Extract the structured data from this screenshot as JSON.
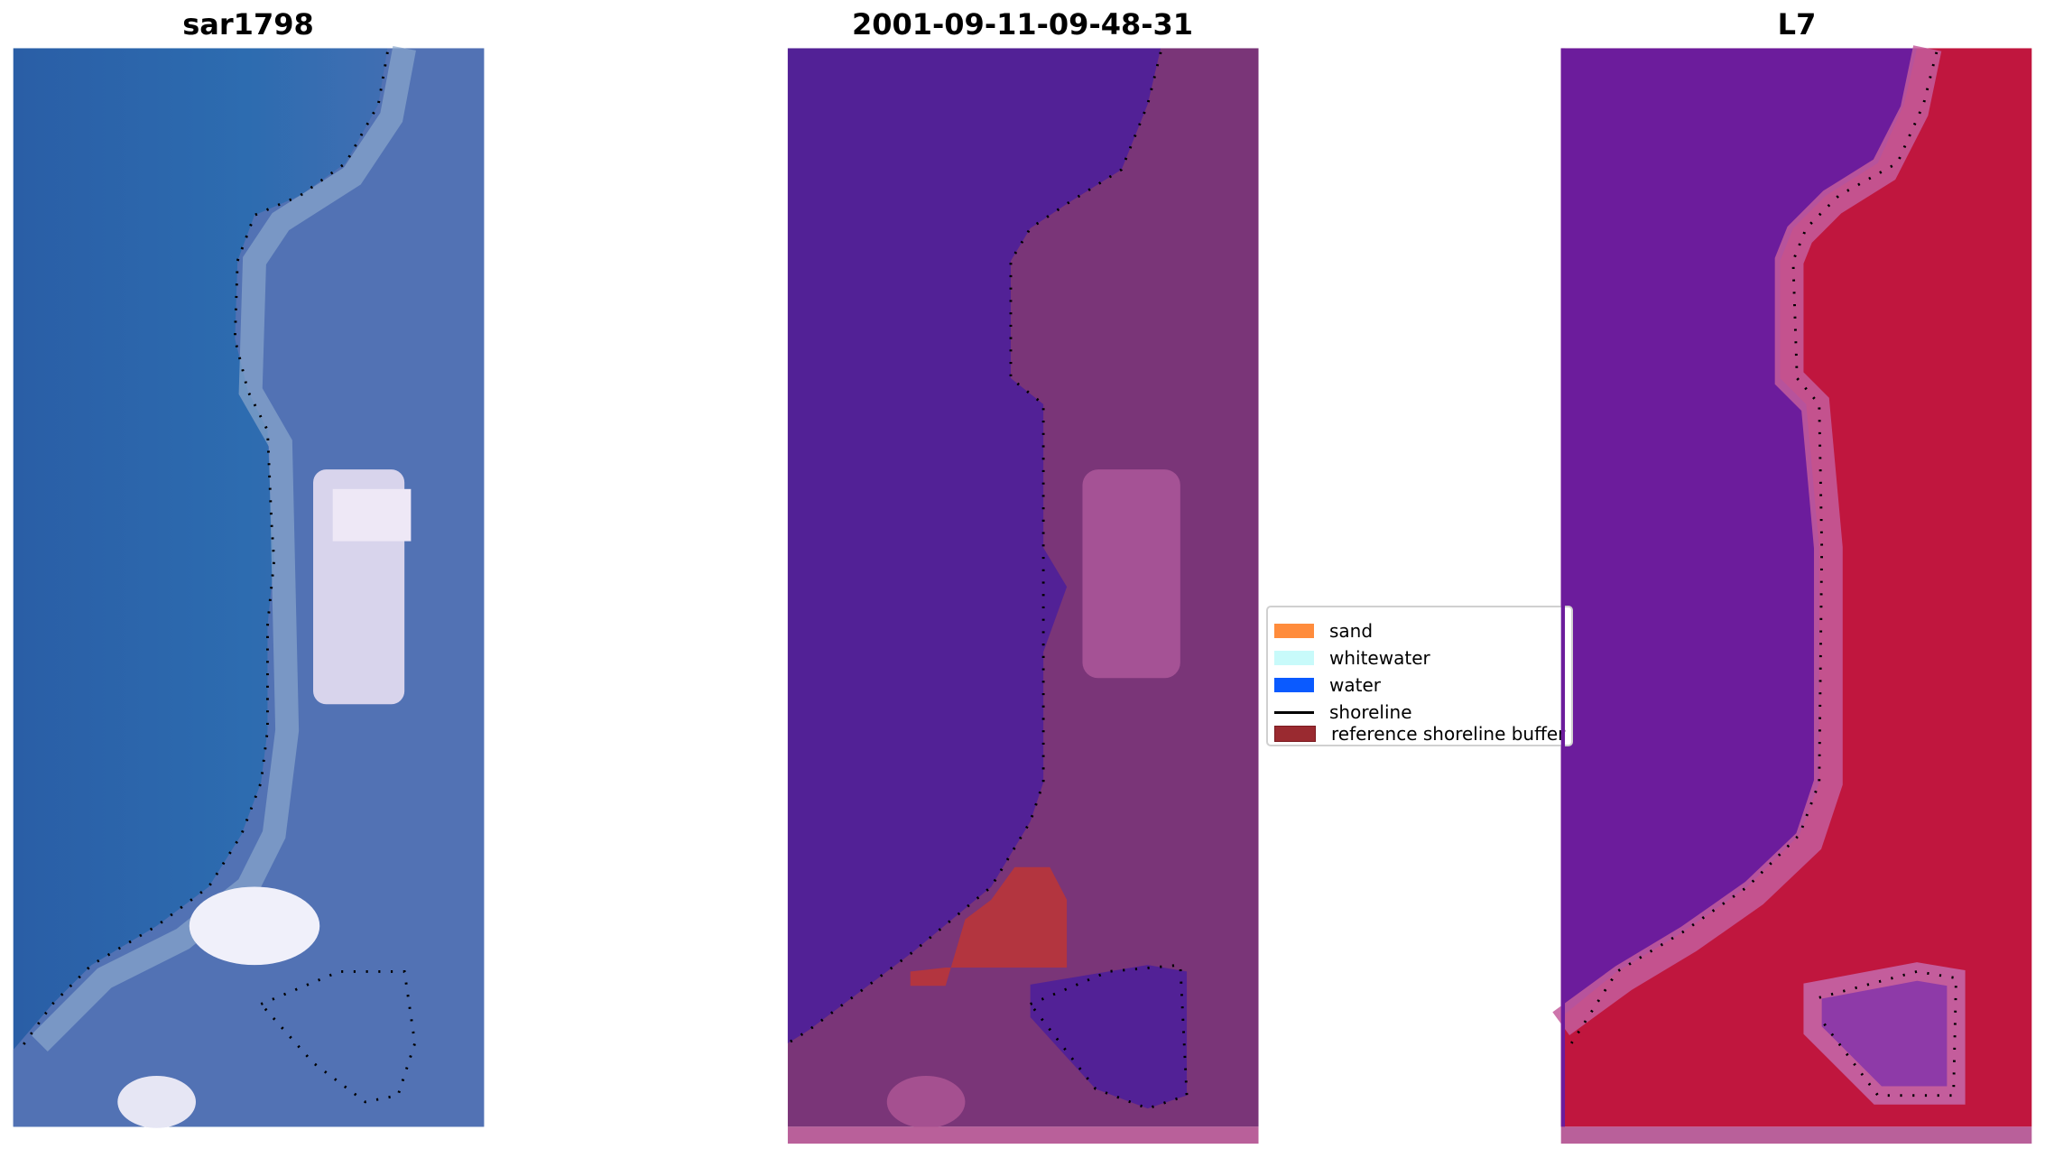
{
  "panels": [
    {
      "title": "sar1798"
    },
    {
      "title": "2001-09-11-09-48-31"
    },
    {
      "title": "L7"
    }
  ],
  "legend": {
    "items": [
      {
        "label": "sand",
        "color": "#ff8c3c"
      },
      {
        "label": "whitewater",
        "color": "#c8fafa"
      },
      {
        "label": "water",
        "color": "#0a5aff"
      },
      {
        "label": "shoreline",
        "color": "#000000"
      },
      {
        "label": "reference shoreline buffer",
        "color": "#9a2a30"
      }
    ]
  }
}
